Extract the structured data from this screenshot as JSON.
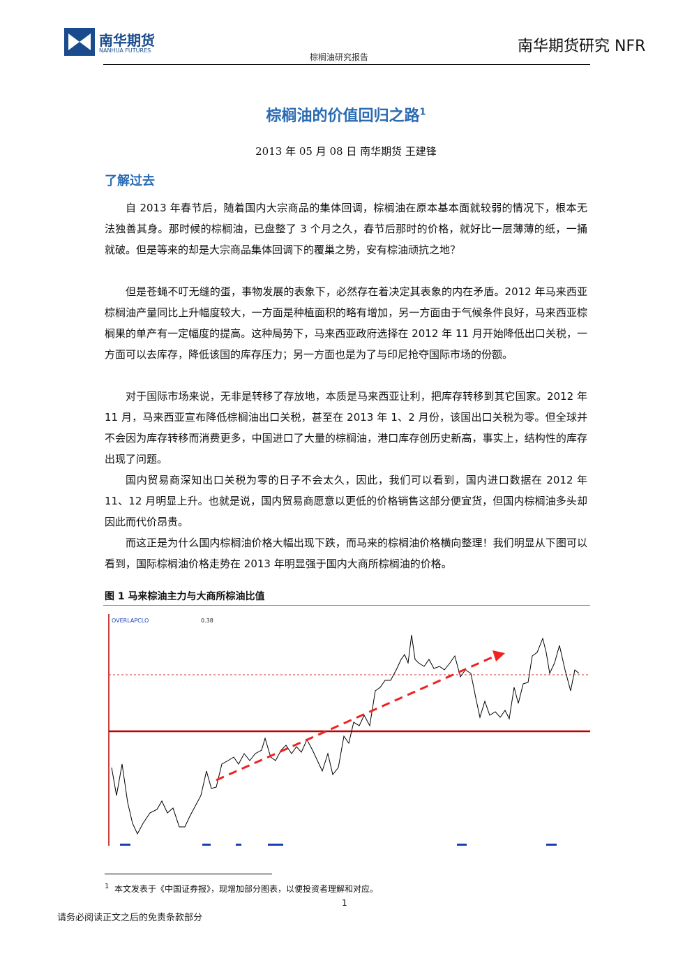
{
  "header": {
    "logo_cn": "南华期货",
    "logo_en": "NANHUA FUTURES",
    "subtitle": "棕榈油研究报告",
    "brand": "南华期货研究 NFR"
  },
  "title": "棕榈油的价值回归之路",
  "title_note": "1",
  "byline": "2013 年 05 月 08 日    南华期货 王建锋",
  "section": "了解过去",
  "paragraphs": [
    "自 2013 年春节后，随着国内大宗商品的集体回调，棕榈油在原本基本面就较弱的情况下，根本无法独善其身。那时候的棕榈油，已盘整了 3 个月之久，春节后那时的价格，就好比一层薄薄的纸，一捅就破。但是等来的却是大宗商品集体回调下的覆巢之势，安有棕油顽抗之地？",
    "但是苍蝇不叮无缝的蛋，事物发展的表象下，必然存在着决定其表象的内在矛盾。2012 年马来西亚棕榈油产量同比上升幅度较大，一方面是种植面积的略有增加，另一方面由于气候条件良好，马来西亚棕榈果的单产有一定幅度的提高。这种局势下，马来西亚政府选择在 2012 年 11 月开始降低出口关税，一方面可以去库存，降低该国的库存压力；另一方面也是为了与印尼抢夺国际市场的份额。",
    "对于国际市场来说，无非是转移了存放地，本质是马来西亚让利，把库存转移到其它国家。2012 年 11 月，马来西亚宣布降低棕榈油出口关税，甚至在 2013 年 1、2 月份，该国出口关税为零。但全球并不会因为库存转移而消费更多，中国进口了大量的棕榈油，港口库存创历史新高，事实上，结构性的库存出现了问题。",
    "国内贸易商深知出口关税为零的日子不会太久，因此，我们可以看到，国内进口数据在 2012 年 11、12 月明显上升。也就是说，国内贸易商愿意以更低的价格销售这部分便宜货，但国内棕榈油多头却因此而代价昂贵。",
    "而这正是为什么国内棕榈油价格大幅出现下跌，而马来的棕榈油价格横向整理！我们明显从下图可以看到，国际棕榈油价格走势在 2013 年明显强于国内大商所棕榈油的价格。"
  ],
  "figure": {
    "caption": "图 1 马来棕油主力与大商所棕油比值",
    "indicator": "OVERLAPCLO",
    "indicator_value": "0.38"
  },
  "footnote": {
    "mark": "1",
    "text": "本文发表于《中国证券报》，现增加部分图表，以便投资者理解和对应。"
  },
  "page_number": "1",
  "disclaimer": "请务必阅读正文之后的免责条款部分"
}
